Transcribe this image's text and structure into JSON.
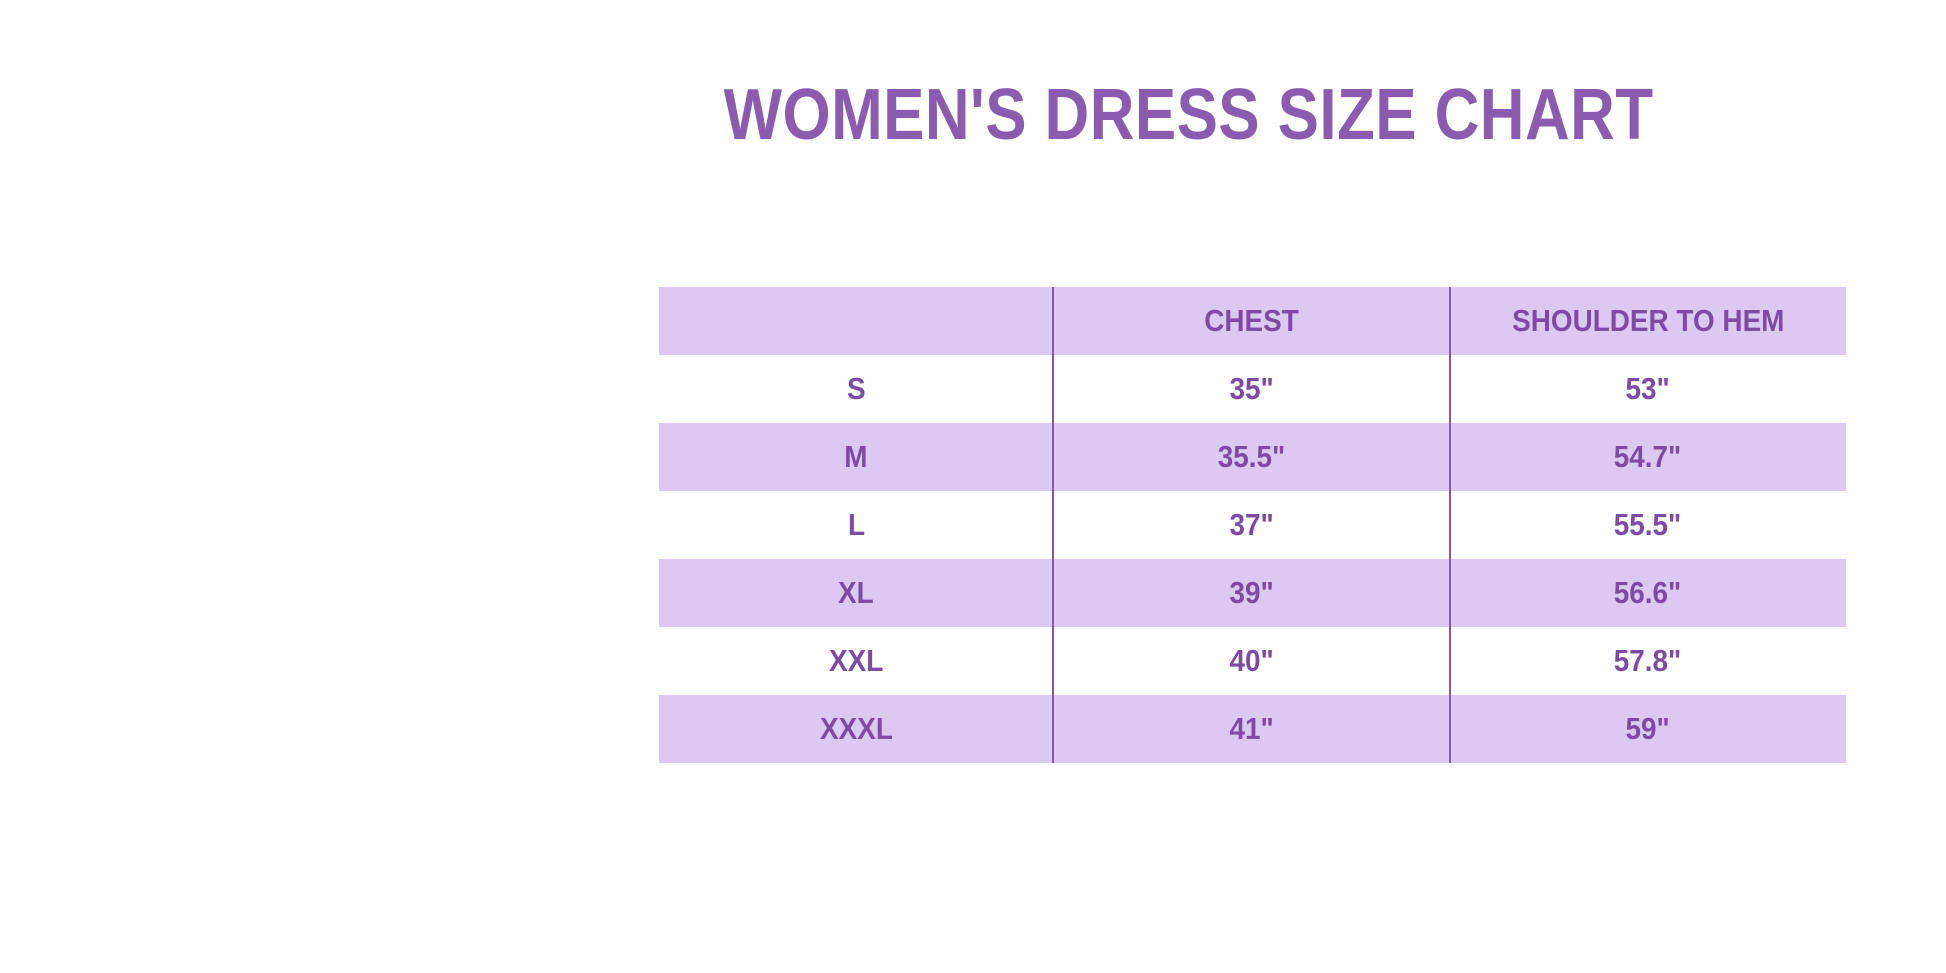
{
  "chart_data": {
    "type": "table",
    "title": "WOMEN'S DRESS SIZE CHART",
    "columns": [
      "",
      "CHEST",
      "SHOULDER TO HEM"
    ],
    "rows": [
      [
        "S",
        "35\"",
        "53\""
      ],
      [
        "M",
        "35.5\"",
        "54.7\""
      ],
      [
        "L",
        "37\"",
        "55.5\""
      ],
      [
        "XL",
        "39\"",
        "56.6\""
      ],
      [
        "XXL",
        "40\"",
        "57.8\""
      ],
      [
        "XXXL",
        "41\"",
        "59\""
      ]
    ],
    "layout": {
      "header_background": "#ddc8f2",
      "row_alternating_colors": [
        "#ffffff",
        "#ddc8f2"
      ],
      "column_divider_color": "#8058ab",
      "grid": "vertical-dividers-only"
    }
  },
  "colors": {
    "title_text": "#8b5bb0",
    "cell_text": "#7d4ba3",
    "row_highlight": "#ddc8f2",
    "background": "#ffffff"
  }
}
